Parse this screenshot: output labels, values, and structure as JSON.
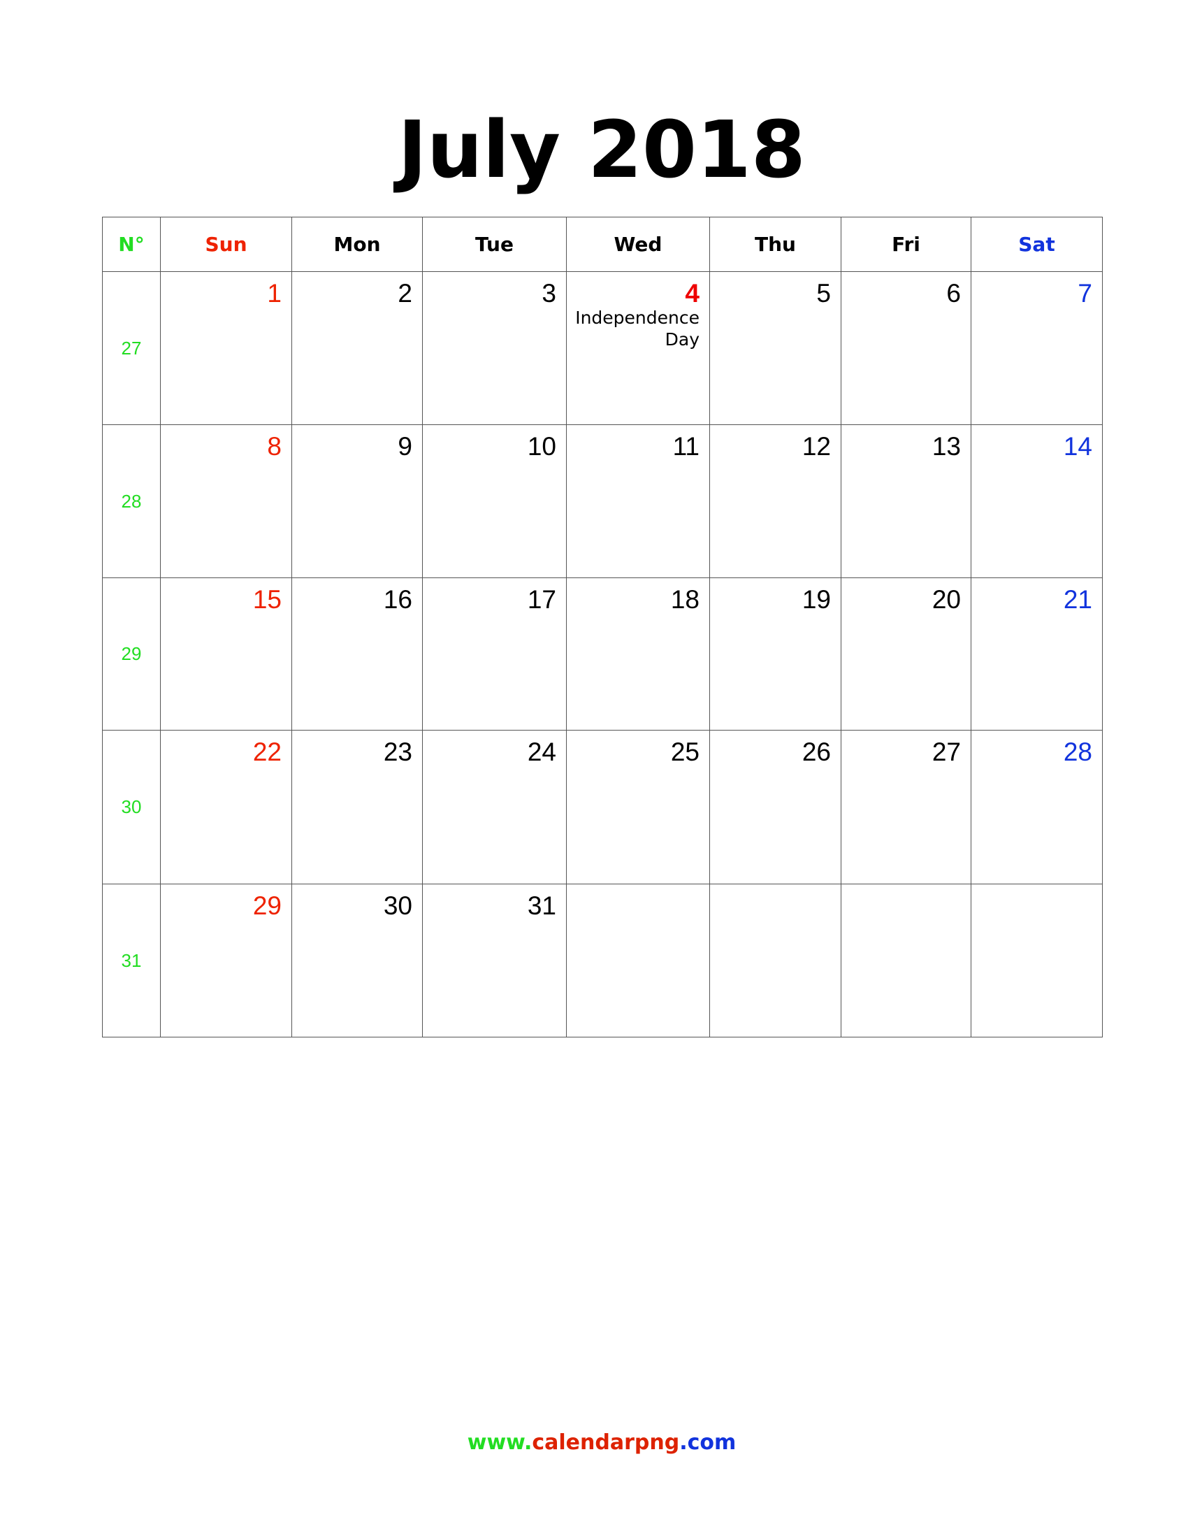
{
  "title": "July 2018",
  "headers": [
    "N°",
    "Sun",
    "Mon",
    "Tue",
    "Wed",
    "Thu",
    "Fri",
    "Sat"
  ],
  "weeks": [
    {
      "number": 27,
      "days": [
        1,
        2,
        3,
        {
          "date": 4,
          "note": "Independence Day"
        },
        5,
        6,
        7
      ]
    },
    {
      "number": 28,
      "days": [
        8,
        9,
        10,
        11,
        12,
        13,
        14
      ]
    },
    {
      "number": 29,
      "days": [
        15,
        16,
        17,
        18,
        19,
        20,
        21
      ]
    },
    {
      "number": 30,
      "days": [
        22,
        23,
        24,
        25,
        26,
        27,
        28
      ]
    },
    {
      "number": 31,
      "days": [
        29,
        30,
        31,
        null,
        null,
        null,
        null
      ]
    }
  ],
  "footer": [
    "www.",
    "calendarpng",
    ".com"
  ]
}
